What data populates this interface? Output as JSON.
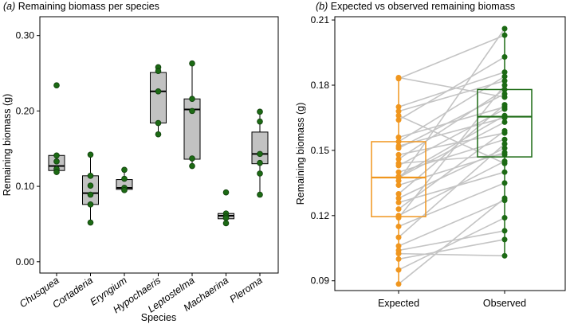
{
  "colors": {
    "point_a": "#1c6a14",
    "point_a_edge": "#0f3d0b",
    "box_a_fill": "#c2c2c2",
    "expected": "#f0961e",
    "observed": "#1c6a14",
    "pair_line": "#c4c4c4"
  },
  "chart_data": [
    {
      "type": "box",
      "title_prefix": "(a)",
      "title": "Remaining biomass per species",
      "xlabel": "Species",
      "ylabel": "Remaining biomass (g)",
      "ylim": [
        -0.015,
        0.325
      ],
      "yticks": [
        0.0,
        0.1,
        0.2,
        0.3
      ],
      "ytick_labels": [
        "0.00",
        "0.10",
        "0.20",
        "0.30"
      ],
      "categories": [
        "Chusquea",
        "Cortaderia",
        "Eryngium",
        "Hypochaeris",
        "Leptostelma",
        "Machaerina",
        "Pleroma"
      ],
      "boxes": [
        {
          "q1": 0.121,
          "median": 0.127,
          "q3": 0.141,
          "whisker_low": 0.115,
          "whisker_high": 0.141
        },
        {
          "q1": 0.076,
          "median": 0.091,
          "q3": 0.114,
          "whisker_low": 0.052,
          "whisker_high": 0.142
        },
        {
          "q1": 0.096,
          "median": 0.098,
          "q3": 0.109,
          "whisker_low": 0.094,
          "whisker_high": 0.122
        },
        {
          "q1": 0.184,
          "median": 0.226,
          "q3": 0.251,
          "whisker_low": 0.169,
          "whisker_high": 0.258
        },
        {
          "q1": 0.136,
          "median": 0.202,
          "q3": 0.216,
          "whisker_low": 0.126,
          "whisker_high": 0.263
        },
        {
          "q1": 0.057,
          "median": 0.061,
          "q3": 0.064,
          "whisker_low": 0.057,
          "whisker_high": 0.064
        },
        {
          "q1": 0.13,
          "median": 0.143,
          "q3": 0.172,
          "whisker_low": 0.089,
          "whisker_high": 0.199
        }
      ],
      "points": [
        [
          0.234,
          0.141,
          0.133,
          0.123,
          0.119
        ],
        [
          0.142,
          0.114,
          0.101,
          0.089,
          0.076,
          0.052
        ],
        [
          0.122,
          0.11,
          0.098,
          0.095
        ],
        [
          0.258,
          0.253,
          0.226,
          0.184,
          0.169
        ],
        [
          0.263,
          0.216,
          0.2,
          0.137,
          0.127
        ],
        [
          0.092,
          0.064,
          0.06,
          0.058,
          0.051
        ],
        [
          0.199,
          0.186,
          0.143,
          0.131,
          0.117,
          0.089
        ]
      ]
    },
    {
      "type": "paired-box",
      "title_prefix": "(b)",
      "title": "Expected vs observed remaining biomass",
      "xlabel": "",
      "ylabel": "Remaining biomass (g)",
      "ylim": [
        0.0855,
        0.2115
      ],
      "yticks": [
        0.09,
        0.12,
        0.15,
        0.18,
        0.21
      ],
      "ytick_labels": [
        "0.09",
        "0.12",
        "0.15",
        "0.18",
        "0.21"
      ],
      "categories": [
        "Expected",
        "Observed"
      ],
      "boxes": [
        {
          "q1": 0.1195,
          "median": 0.1375,
          "q3": 0.154,
          "whisker_low": 0.0885,
          "whisker_high": 0.1835
        },
        {
          "q1": 0.147,
          "median": 0.1655,
          "q3": 0.178,
          "whisker_low": 0.1015,
          "whisker_high": 0.206
        }
      ],
      "pairs": [
        [
          0.1835,
          0.1745
        ],
        [
          0.183,
          0.203
        ],
        [
          0.17,
          0.186
        ],
        [
          0.168,
          0.182
        ],
        [
          0.166,
          0.144
        ],
        [
          0.164,
          0.193
        ],
        [
          0.156,
          0.17
        ],
        [
          0.154,
          0.184
        ],
        [
          0.152,
          0.165
        ],
        [
          0.151,
          0.176
        ],
        [
          0.148,
          0.158
        ],
        [
          0.146,
          0.178
        ],
        [
          0.144,
          0.148
        ],
        [
          0.143,
          0.169
        ],
        [
          0.14,
          0.155
        ],
        [
          0.138,
          0.166
        ],
        [
          0.1375,
          0.163
        ],
        [
          0.136,
          0.206
        ],
        [
          0.134,
          0.149
        ],
        [
          0.13,
          0.171
        ],
        [
          0.128,
          0.151
        ],
        [
          0.126,
          0.14
        ],
        [
          0.123,
          0.159
        ],
        [
          0.12,
          0.145
        ],
        [
          0.119,
          0.18
        ],
        [
          0.115,
          0.135
        ],
        [
          0.11,
          0.153
        ],
        [
          0.106,
          0.127
        ],
        [
          0.104,
          0.113
        ],
        [
          0.1025,
          0.1015
        ],
        [
          0.1,
          0.109
        ],
        [
          0.095,
          0.119
        ],
        [
          0.0885,
          0.128
        ]
      ]
    }
  ]
}
